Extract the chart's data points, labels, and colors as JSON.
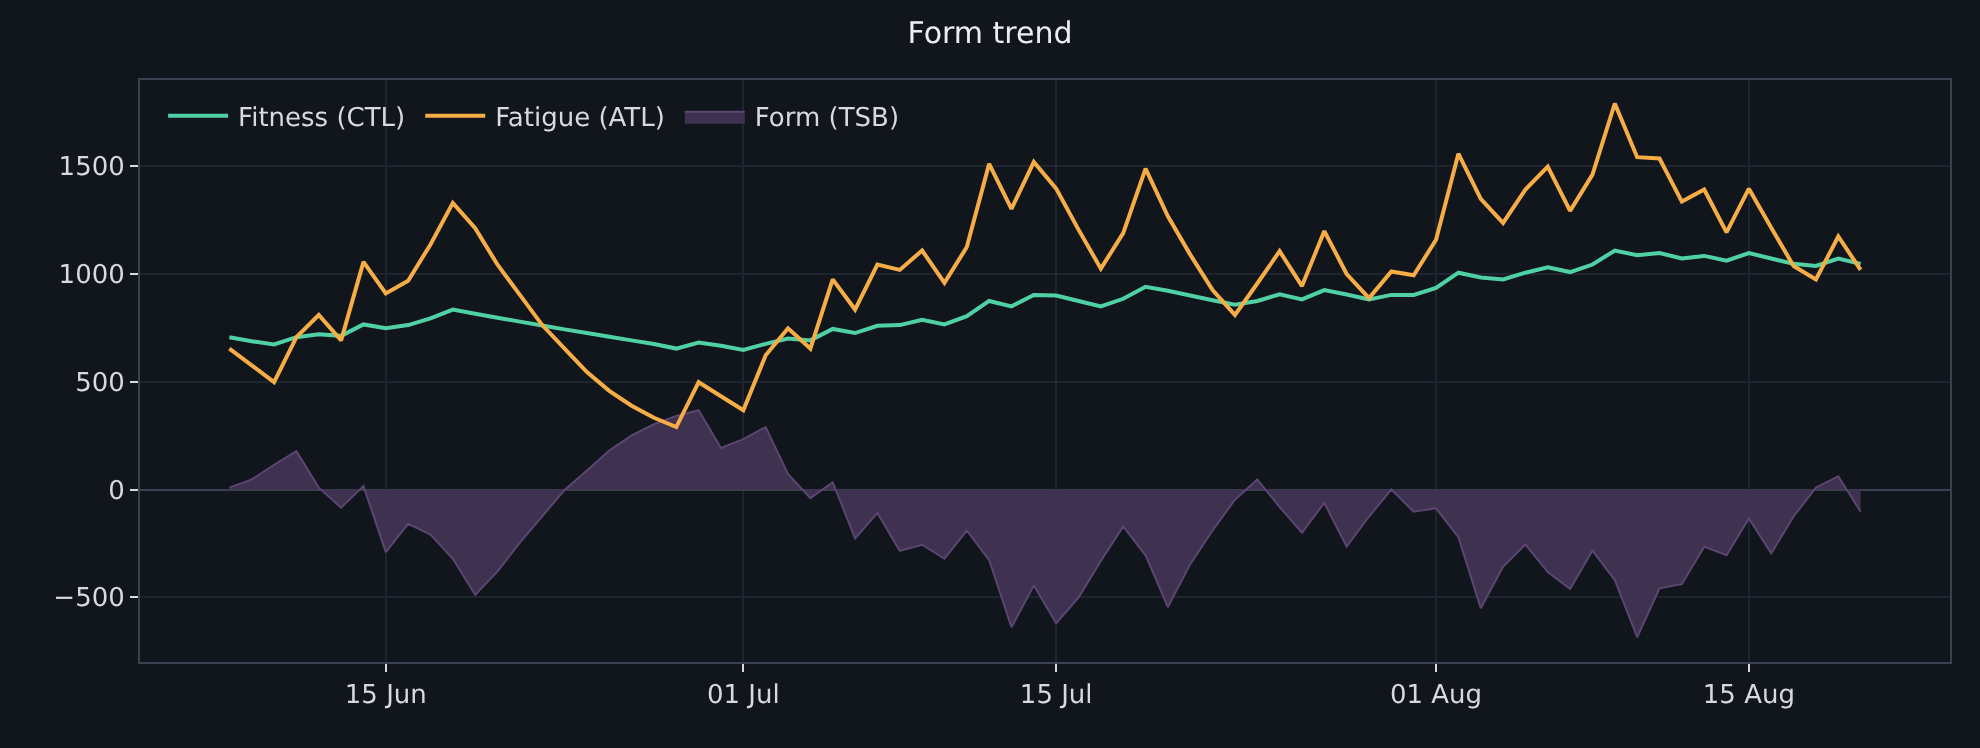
{
  "chart_data": {
    "type": "line",
    "title": "Form trend",
    "x": [
      "--06-08",
      "--06-09",
      "--06-10",
      "--06-11",
      "--06-12",
      "--06-13",
      "--06-14",
      "--06-15",
      "--06-16",
      "--06-17",
      "--06-18",
      "--06-19",
      "--06-20",
      "--06-21",
      "--06-22",
      "--06-23",
      "--06-24",
      "--06-25",
      "--06-26",
      "--06-27",
      "--06-28",
      "--06-29",
      "--06-30",
      "--07-01",
      "--07-02",
      "--07-03",
      "--07-04",
      "--07-05",
      "--07-06",
      "--07-07",
      "--07-08",
      "--07-09",
      "--07-10",
      "--07-11",
      "--07-12",
      "--07-13",
      "--07-14",
      "--07-15",
      "--07-16",
      "--07-17",
      "--07-18",
      "--07-19",
      "--07-20",
      "--07-21",
      "--07-22",
      "--07-23",
      "--07-24",
      "--07-25",
      "--07-26",
      "--07-27",
      "--07-28",
      "--07-29",
      "--07-30",
      "--07-31",
      "--08-01",
      "--08-02",
      "--08-03",
      "--08-04",
      "--08-05",
      "--08-06",
      "--08-07",
      "--08-08",
      "--08-09",
      "--08-10",
      "--08-11",
      "--08-12",
      "--08-13",
      "--08-14",
      "--08-15",
      "--08-16",
      "--08-17",
      "--08-18",
      "--08-19",
      "--08-20"
    ],
    "series": [
      {
        "name": "Fitness (CTL)",
        "color": "#4fd1a5",
        "values": [
          707,
          688,
          673,
          707,
          720,
          713,
          766,
          748,
          763,
          794,
          835,
          816,
          797,
          779,
          761,
          743,
          726,
          709,
          692,
          675,
          654,
          682,
          667,
          648,
          676,
          701,
          692,
          745,
          726,
          760,
          763,
          788,
          766,
          804,
          875,
          850,
          903,
          900,
          875,
          850,
          885,
          941,
          922,
          900,
          878,
          857,
          875,
          906,
          882,
          925,
          905,
          882,
          903,
          903,
          935,
          1006,
          984,
          975,
          1006,
          1031,
          1009,
          1044,
          1109,
          1087,
          1097,
          1072,
          1084,
          1062,
          1097,
          1072,
          1047,
          1037,
          1072,
          1047
        ]
      },
      {
        "name": "Fatigue (ATL)",
        "color": "#f6ad45",
        "values": [
          654,
          576,
          498,
          707,
          810,
          692,
          1056,
          910,
          969,
          1137,
          1330,
          1212,
          1043,
          903,
          763,
          654,
          545,
          458,
          389,
          333,
          290,
          498,
          433,
          368,
          623,
          748,
          654,
          975,
          835,
          1044,
          1019,
          1109,
          959,
          1125,
          1511,
          1302,
          1520,
          1396,
          1206,
          1025,
          1190,
          1489,
          1268,
          1090,
          925,
          810,
          956,
          1106,
          944,
          1199,
          1000,
          888,
          1012,
          994,
          1159,
          1558,
          1349,
          1237,
          1392,
          1498,
          1293,
          1461,
          1791,
          1542,
          1536,
          1336,
          1392,
          1193,
          1396,
          1215,
          1037,
          975,
          1174,
          1019
        ]
      },
      {
        "name": "Form (TSB)",
        "type": "area",
        "color": "#3f3150",
        "values": [
          9,
          47,
          115,
          178,
          9,
          -84,
          16,
          -290,
          -159,
          -209,
          -321,
          -489,
          -380,
          -246,
          -124,
          -2,
          89,
          181,
          251,
          303,
          342,
          368,
          193,
          234,
          290,
          72,
          -40,
          34,
          -227,
          -109,
          -284,
          -256,
          -321,
          -190,
          -327,
          -639,
          -445,
          -620,
          -501,
          -331,
          -171,
          -305,
          -545,
          -346,
          -190,
          -47,
          47,
          -81,
          -200,
          -62,
          -265,
          -125,
          0,
          -103,
          -87,
          -221,
          -551,
          -358,
          -255,
          -383,
          -461,
          -283,
          -420,
          -685,
          -458,
          -439,
          -265,
          -305,
          -134,
          -296,
          -125,
          9,
          62,
          -103
        ]
      }
    ],
    "xlim": [
      "--06-04",
      "--08-24"
    ],
    "xticks": [
      {
        "value": "--06-15",
        "label": "15 Jun"
      },
      {
        "value": "--07-01",
        "label": "01 Jul"
      },
      {
        "value": "--07-15",
        "label": "15 Jul"
      },
      {
        "value": "--08-01",
        "label": "01 Aug"
      },
      {
        "value": "--08-15",
        "label": "15 Aug"
      }
    ],
    "ylim": [
      -800,
      1900
    ],
    "yticks": [
      -500,
      0,
      500,
      1000,
      1500
    ],
    "grid": true,
    "legend": "top left"
  }
}
